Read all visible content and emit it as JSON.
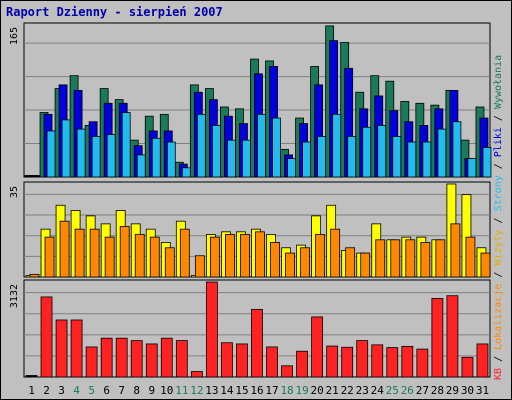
{
  "title": "Raport Dzienny -  sierpień 2007",
  "chart_data": {
    "type": "bar",
    "title": "Raport Dzienny -  sierpień 2007",
    "categories": [
      "1",
      "2",
      "3",
      "4",
      "5",
      "6",
      "7",
      "8",
      "9",
      "10",
      "11",
      "12",
      "13",
      "14",
      "15",
      "16",
      "17",
      "18",
      "19",
      "20",
      "21",
      "22",
      "23",
      "24",
      "25",
      "26",
      "27",
      "28",
      "29",
      "30",
      "31"
    ],
    "weekend_days": [
      "4",
      "5",
      "11",
      "12",
      "18",
      "19",
      "25",
      "26"
    ],
    "panels": [
      {
        "id": "top",
        "max_label": "165",
        "ylim": [
          0,
          165
        ],
        "series": [
          {
            "name": "Wywołania",
            "color": "#1a7a5a",
            "values": [
              0,
              70,
              96,
              110,
              56,
              96,
              84,
              40,
              66,
              68,
              16,
              100,
              96,
              76,
              74,
              128,
              126,
              30,
              64,
              120,
              164,
              146,
              92,
              110,
              104,
              82,
              80,
              78,
              94,
              40,
              76
            ]
          },
          {
            "name": "Pliki",
            "color": "#0000dd",
            "values": [
              0,
              68,
              100,
              94,
              60,
              80,
              80,
              34,
              50,
              50,
              14,
              92,
              84,
              66,
              58,
              112,
              120,
              24,
              58,
              100,
              148,
              118,
              74,
              88,
              72,
              60,
              56,
              74,
              94,
              20,
              64
            ]
          },
          {
            "name": "Strony",
            "color": "#22bbee",
            "values": [
              0,
              50,
              62,
              52,
              44,
              46,
              70,
              24,
              42,
              38,
              10,
              68,
              56,
              40,
              40,
              68,
              64,
              20,
              38,
              44,
              68,
              44,
              54,
              56,
              44,
              38,
              38,
              52,
              60,
              20,
              32
            ]
          }
        ]
      },
      {
        "id": "middle",
        "max_label": "35",
        "ylim": [
          0,
          35
        ],
        "series": [
          {
            "name": "Wizyty",
            "color": "#ffff00",
            "values": [
              0,
              18,
              27,
              25,
              23,
              20,
              25,
              20,
              18,
              13,
              21,
              0,
              16,
              17,
              17,
              18,
              16,
              11,
              12,
              23,
              27,
              10,
              9,
              20,
              14,
              15,
              15,
              14,
              35,
              31,
              11
            ]
          },
          {
            "name": "Lokalizacje",
            "color": "#ff8800",
            "values": [
              1,
              15,
              21,
              18,
              18,
              15,
              19,
              16,
              15,
              11,
              18,
              8,
              15,
              16,
              16,
              17,
              13,
              9,
              11,
              16,
              18,
              11,
              9,
              14,
              14,
              14,
              13,
              14,
              20,
              15,
              9
            ]
          }
        ]
      },
      {
        "id": "bottom",
        "max_label": "3132",
        "ylim": [
          0,
          3132
        ],
        "series": [
          {
            "name": "KB",
            "color": "#ff2222",
            "values": [
              0,
              2640,
              1880,
              1880,
              990,
              1280,
              1280,
              1200,
              1090,
              1280,
              1200,
              180,
              3132,
              1130,
              1090,
              2230,
              990,
              370,
              850,
              1980,
              1020,
              980,
              1200,
              1060,
              970,
              1010,
              920,
              2590,
              2680,
              650,
              1090
            ]
          }
        ]
      }
    ],
    "right_axis_labels": [
      {
        "text": "Wywołania",
        "color": "#1a7a5a"
      },
      {
        "text": "Pliki",
        "color": "#0000dd"
      },
      {
        "text": "Strony",
        "color": "#22bbee"
      },
      {
        "text": "Wizyty",
        "color": "#e0b000"
      },
      {
        "text": "Lokalizacje",
        "color": "#ff8800"
      },
      {
        "text": "KB",
        "color": "#ff2222"
      }
    ],
    "separator": " / ",
    "grid": true,
    "colors": {
      "background": "#c0c0c0",
      "title": "#0000aa",
      "grid": "#808080",
      "weekend_label": "#1a7a5a",
      "weekday_label": "#000000",
      "separator": "#000000"
    }
  }
}
